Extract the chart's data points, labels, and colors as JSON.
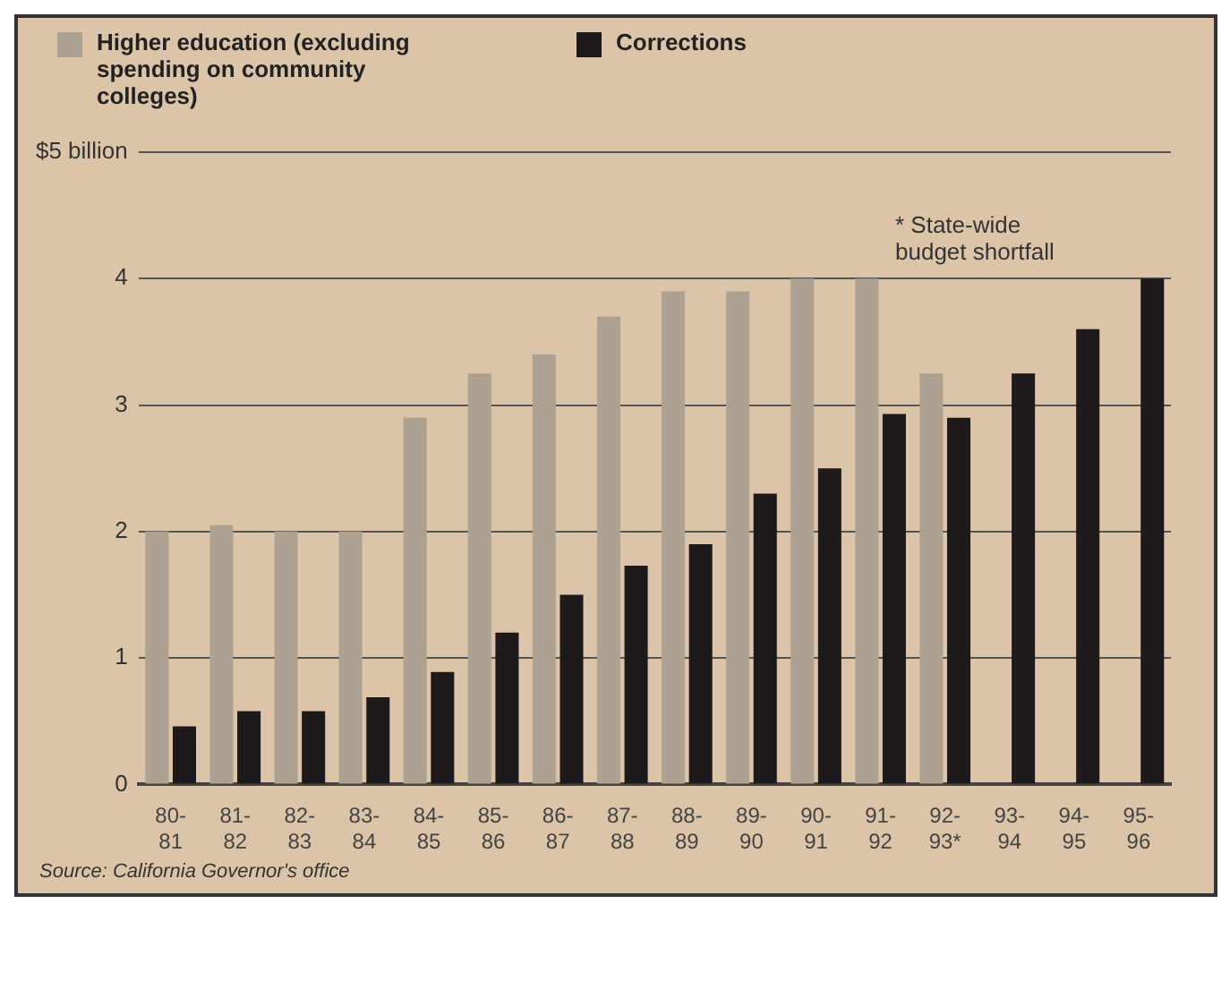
{
  "chart_data": {
    "type": "bar",
    "categories": [
      "80-81",
      "81-82",
      "82-83",
      "83-84",
      "84-85",
      "85-86",
      "86-87",
      "87-88",
      "88-89",
      "89-90",
      "90-91",
      "91-92",
      "92-93*",
      "93-94",
      "94-95",
      "95-96"
    ],
    "series": [
      {
        "name": "Higher education (excluding spending on community colleges)",
        "color": "#ada292",
        "values": [
          2.0,
          2.05,
          2.0,
          2.0,
          2.9,
          3.25,
          3.4,
          3.7,
          3.9,
          3.9,
          4.0,
          4.0,
          3.25,
          null,
          null,
          null
        ]
      },
      {
        "name": "Corrections",
        "color": "#1e1a1c",
        "values": [
          0.46,
          0.58,
          0.58,
          0.69,
          0.89,
          1.2,
          1.5,
          1.73,
          1.9,
          2.3,
          2.5,
          2.93,
          2.9,
          3.25,
          3.6,
          4.0
        ]
      }
    ],
    "ylim": [
      0,
      5
    ],
    "yticks": [
      0,
      1,
      2,
      3,
      4,
      {
        "value": 5,
        "label": "$5 billion"
      }
    ],
    "grid": "y",
    "legend": "top left",
    "annotations": [
      "* State-wide budget shortfall",
      "Source: California Governor's office"
    ]
  }
}
